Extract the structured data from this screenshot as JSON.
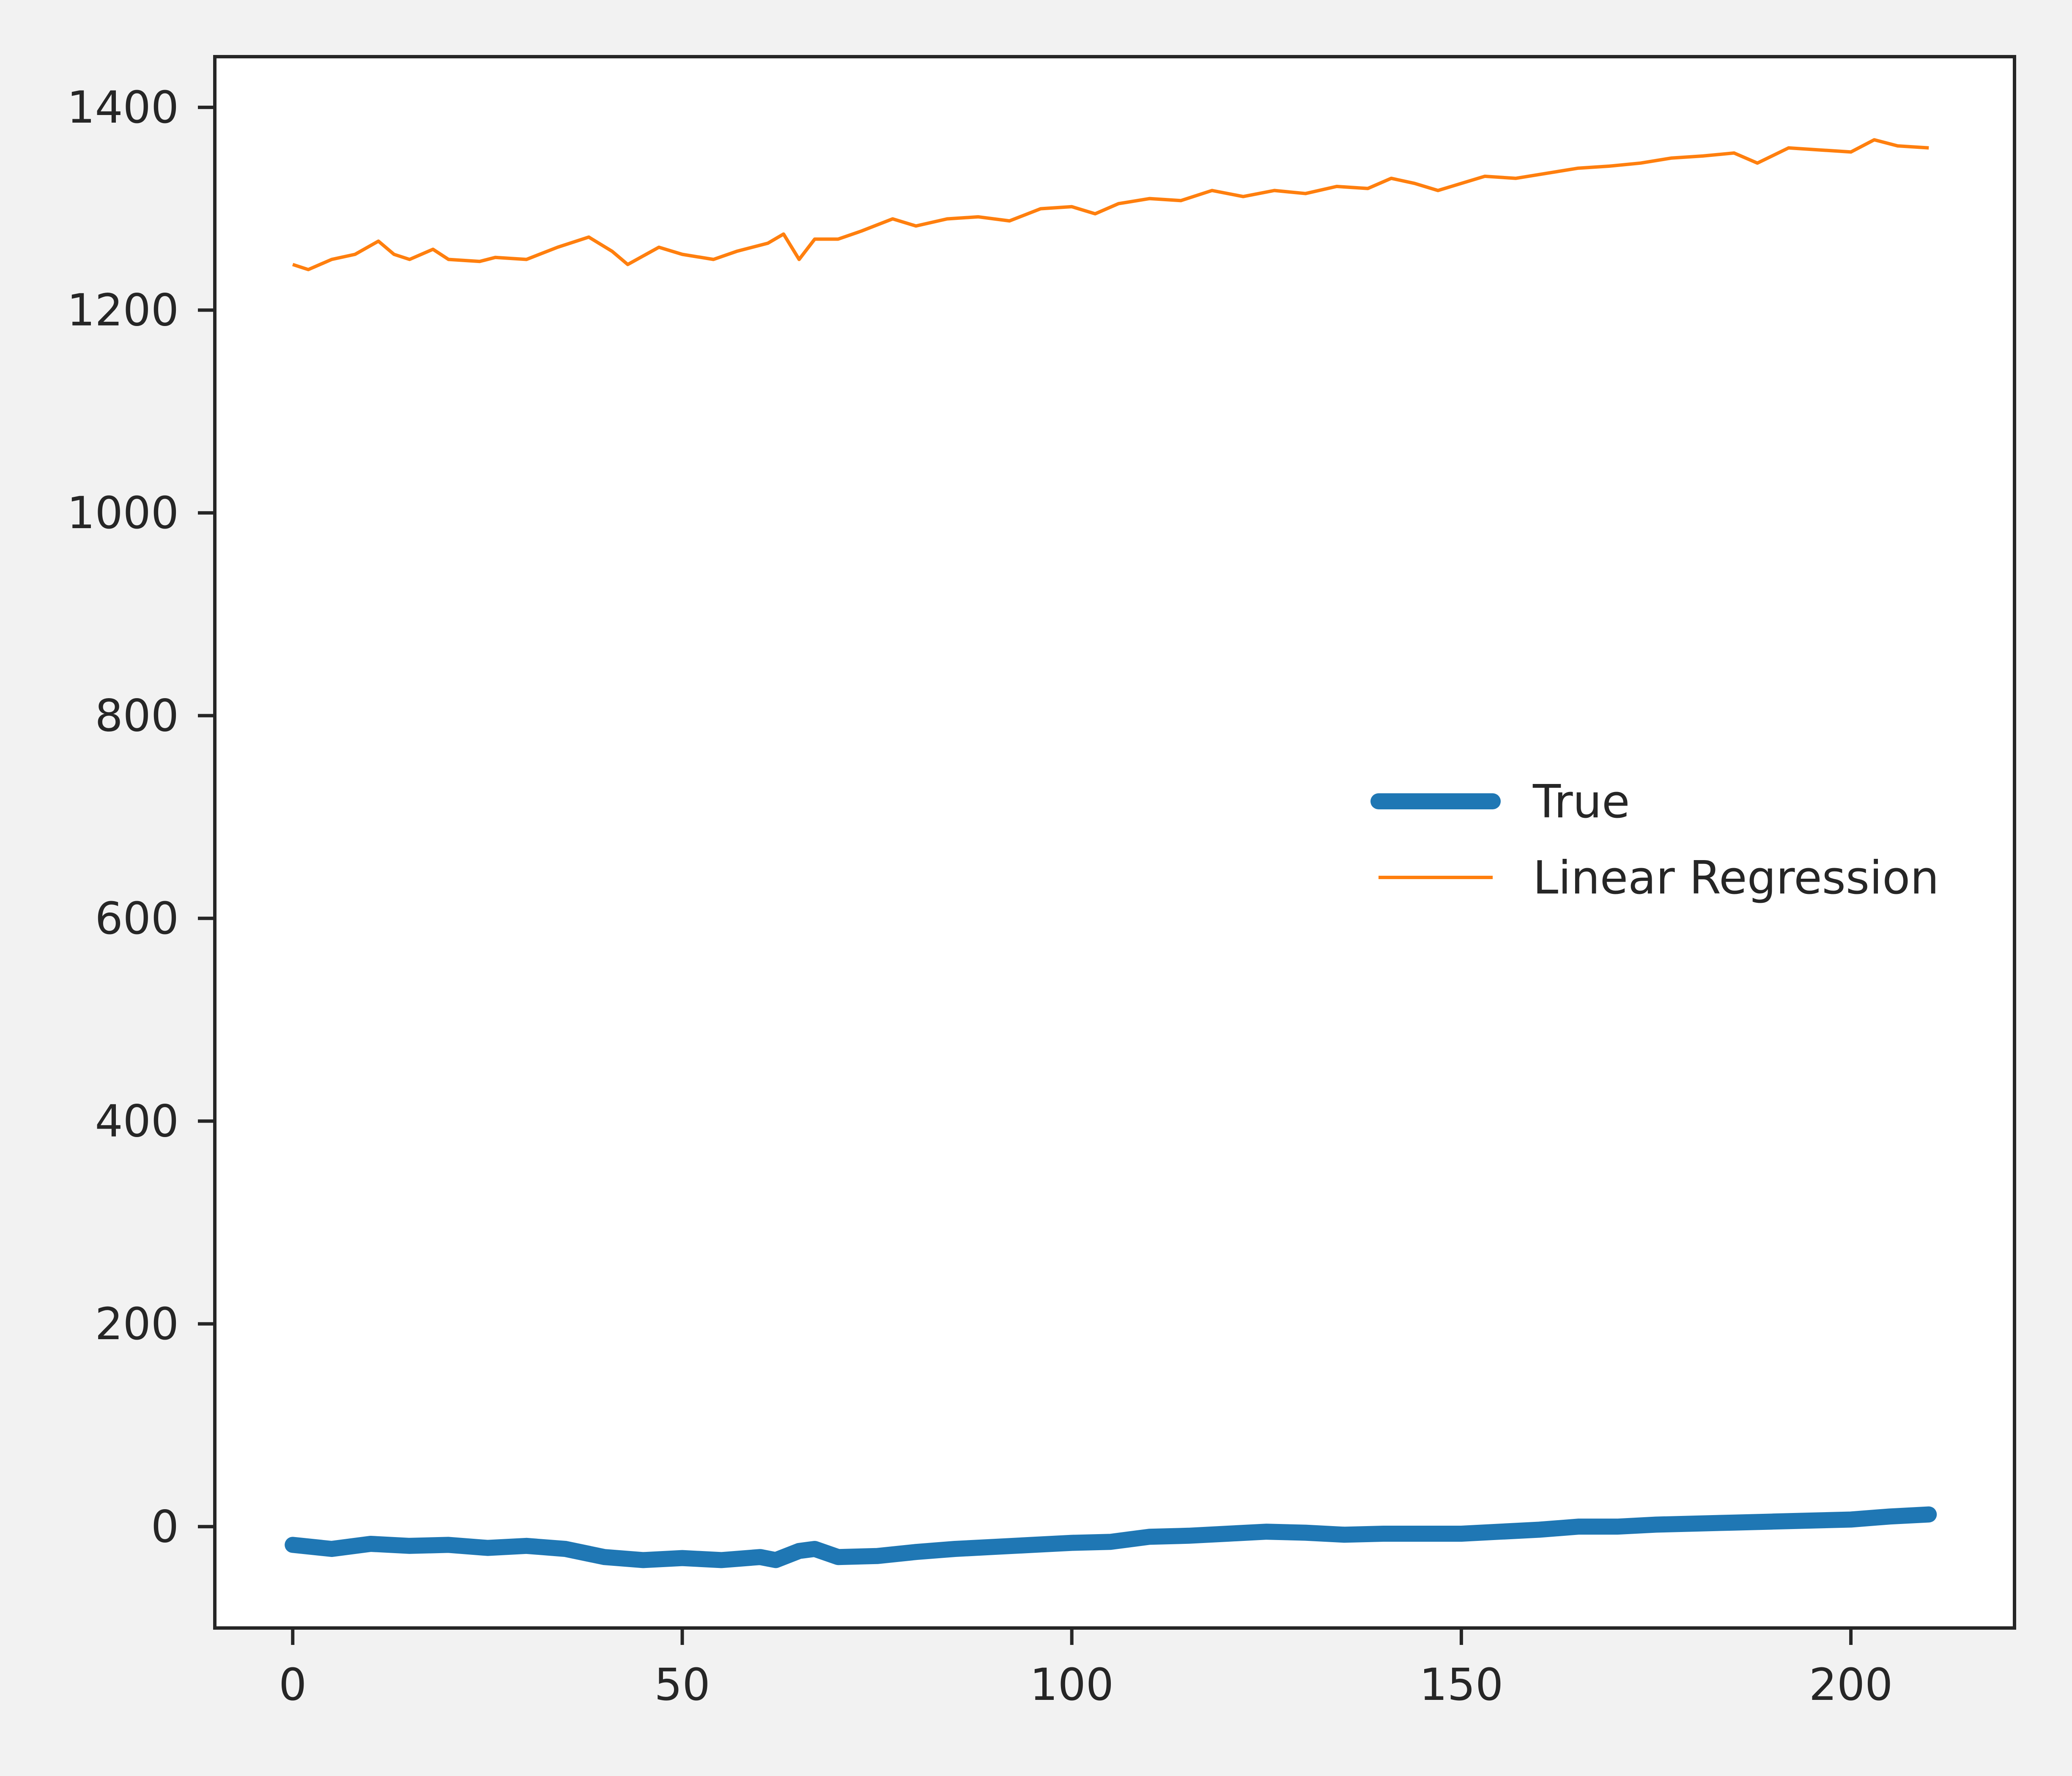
{
  "chart_data": {
    "type": "line",
    "title": "",
    "xlabel": "",
    "ylabel": "",
    "xlim": [
      -10,
      221
    ],
    "ylim": [
      -100,
      1450
    ],
    "xticks": [
      0,
      50,
      100,
      150,
      200
    ],
    "yticks": [
      0,
      200,
      400,
      600,
      800,
      1000,
      1200,
      1400
    ],
    "grid": false,
    "legend_position": "center-right",
    "series": [
      {
        "name": "True",
        "color": "#1f77b4",
        "x": [
          0,
          5,
          10,
          15,
          20,
          25,
          30,
          35,
          40,
          45,
          50,
          55,
          60,
          62,
          65,
          67,
          70,
          75,
          80,
          85,
          90,
          95,
          100,
          105,
          110,
          115,
          120,
          125,
          130,
          135,
          140,
          145,
          150,
          155,
          160,
          165,
          170,
          175,
          180,
          185,
          190,
          195,
          200,
          205,
          210
        ],
        "y": [
          -18,
          -22,
          -17,
          -19,
          -18,
          -21,
          -19,
          -22,
          -30,
          -33,
          -31,
          -33,
          -30,
          -33,
          -24,
          -22,
          -30,
          -29,
          -25,
          -22,
          -20,
          -18,
          -16,
          -15,
          -10,
          -9,
          -7,
          -5,
          -6,
          -8,
          -7,
          -7,
          -7,
          -5,
          -3,
          0,
          0,
          2,
          3,
          4,
          5,
          6,
          7,
          10,
          12
        ]
      },
      {
        "name": "Linear Regression",
        "color": "#ff7f0e",
        "x": [
          0,
          2,
          5,
          8,
          11,
          13,
          15,
          18,
          20,
          24,
          26,
          30,
          34,
          38,
          41,
          43,
          47,
          50,
          54,
          57,
          61,
          63,
          65,
          67,
          70,
          73,
          77,
          80,
          84,
          88,
          92,
          96,
          100,
          103,
          106,
          110,
          114,
          118,
          122,
          126,
          130,
          134,
          138,
          141,
          144,
          147,
          150,
          153,
          157,
          161,
          165,
          169,
          173,
          177,
          181,
          185,
          188,
          192,
          196,
          200,
          203,
          206,
          210
        ],
        "y": [
          1245,
          1240,
          1250,
          1255,
          1268,
          1255,
          1250,
          1260,
          1250,
          1248,
          1252,
          1250,
          1262,
          1272,
          1258,
          1245,
          1262,
          1255,
          1250,
          1258,
          1266,
          1275,
          1250,
          1270,
          1270,
          1278,
          1290,
          1283,
          1290,
          1292,
          1288,
          1300,
          1302,
          1295,
          1305,
          1310,
          1308,
          1318,
          1312,
          1318,
          1315,
          1322,
          1320,
          1330,
          1325,
          1318,
          1325,
          1332,
          1330,
          1335,
          1340,
          1342,
          1345,
          1350,
          1352,
          1355,
          1345,
          1360,
          1358,
          1356,
          1368,
          1362,
          1360
        ]
      }
    ]
  }
}
